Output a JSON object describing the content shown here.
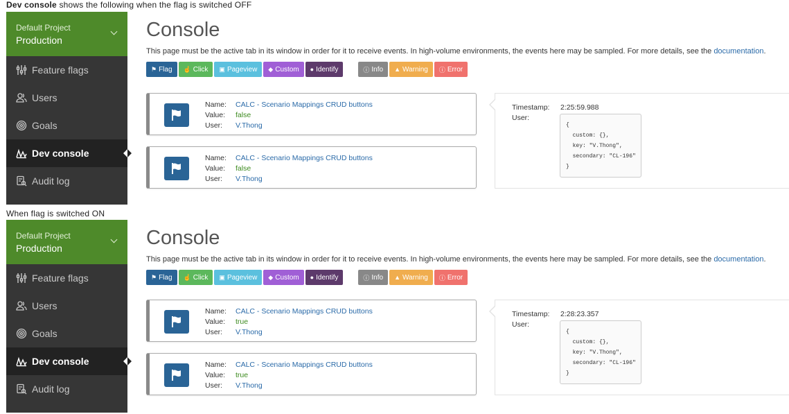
{
  "captions": {
    "top_bold": "Dev console",
    "top_rest": "shows the following when the flag is switched OFF",
    "bottom": "When flag is switched ON"
  },
  "sidebar": {
    "project_name": "Default Project",
    "environment": "Production",
    "items": [
      {
        "label": "Feature flags",
        "icon": "toggles-icon"
      },
      {
        "label": "Users",
        "icon": "users-icon"
      },
      {
        "label": "Goals",
        "icon": "target-icon"
      },
      {
        "label": "Dev console",
        "icon": "wave-icon",
        "active": true
      },
      {
        "label": "Audit log",
        "icon": "audit-icon"
      }
    ]
  },
  "console": {
    "title": "Console",
    "description": "This page must be the active tab in its window in order for it to receive events. In high-volume environments, the events here may be sampled. For more details, see the",
    "doc_link": "documentation",
    "filters": [
      {
        "label": "Flag",
        "icon": "flag-icon",
        "color": "#2a6496"
      },
      {
        "label": "Click",
        "icon": "pointer-icon",
        "color": "#5cb85c"
      },
      {
        "label": "Pageview",
        "icon": "page-icon",
        "color": "#5bc0de"
      },
      {
        "label": "Custom",
        "icon": "tag-icon",
        "color": "#a05fd6"
      },
      {
        "label": "Identify",
        "icon": "user-icon",
        "color": "#5d3a6b"
      }
    ],
    "levels": [
      {
        "label": "Info",
        "icon": "info-icon",
        "color": "#888888"
      },
      {
        "label": "Warning",
        "icon": "warning-icon",
        "color": "#f0ad4e"
      },
      {
        "label": "Error",
        "icon": "error-icon",
        "color": "#f0726d"
      }
    ]
  },
  "labels": {
    "name": "Name:",
    "value": "Value:",
    "user": "User:",
    "timestamp": "Timestamp:",
    "detail_user": "User:"
  },
  "off_panel": {
    "events": [
      {
        "name": "CALC - Scenario Mappings CRUD buttons",
        "value": "false",
        "user": "V.Thong"
      },
      {
        "name": "CALC - Scenario Mappings CRUD buttons",
        "value": "false",
        "user": "V.Thong"
      }
    ],
    "detail": {
      "timestamp": "2:25:59.988",
      "user_json": "{\n  custom: {},\n  key: \"V.Thong\",\n  secondary: \"CL-196\"\n}"
    }
  },
  "on_panel": {
    "events": [
      {
        "name": "CALC - Scenario Mappings CRUD buttons",
        "value": "true",
        "user": "V.Thong"
      },
      {
        "name": "CALC - Scenario Mappings CRUD buttons",
        "value": "true",
        "user": "V.Thong"
      }
    ],
    "detail": {
      "timestamp": "2:28:23.357",
      "user_json": "{\n  custom: {},\n  key: \"V.Thong\",\n  secondary: \"CL-196\"\n}"
    }
  }
}
